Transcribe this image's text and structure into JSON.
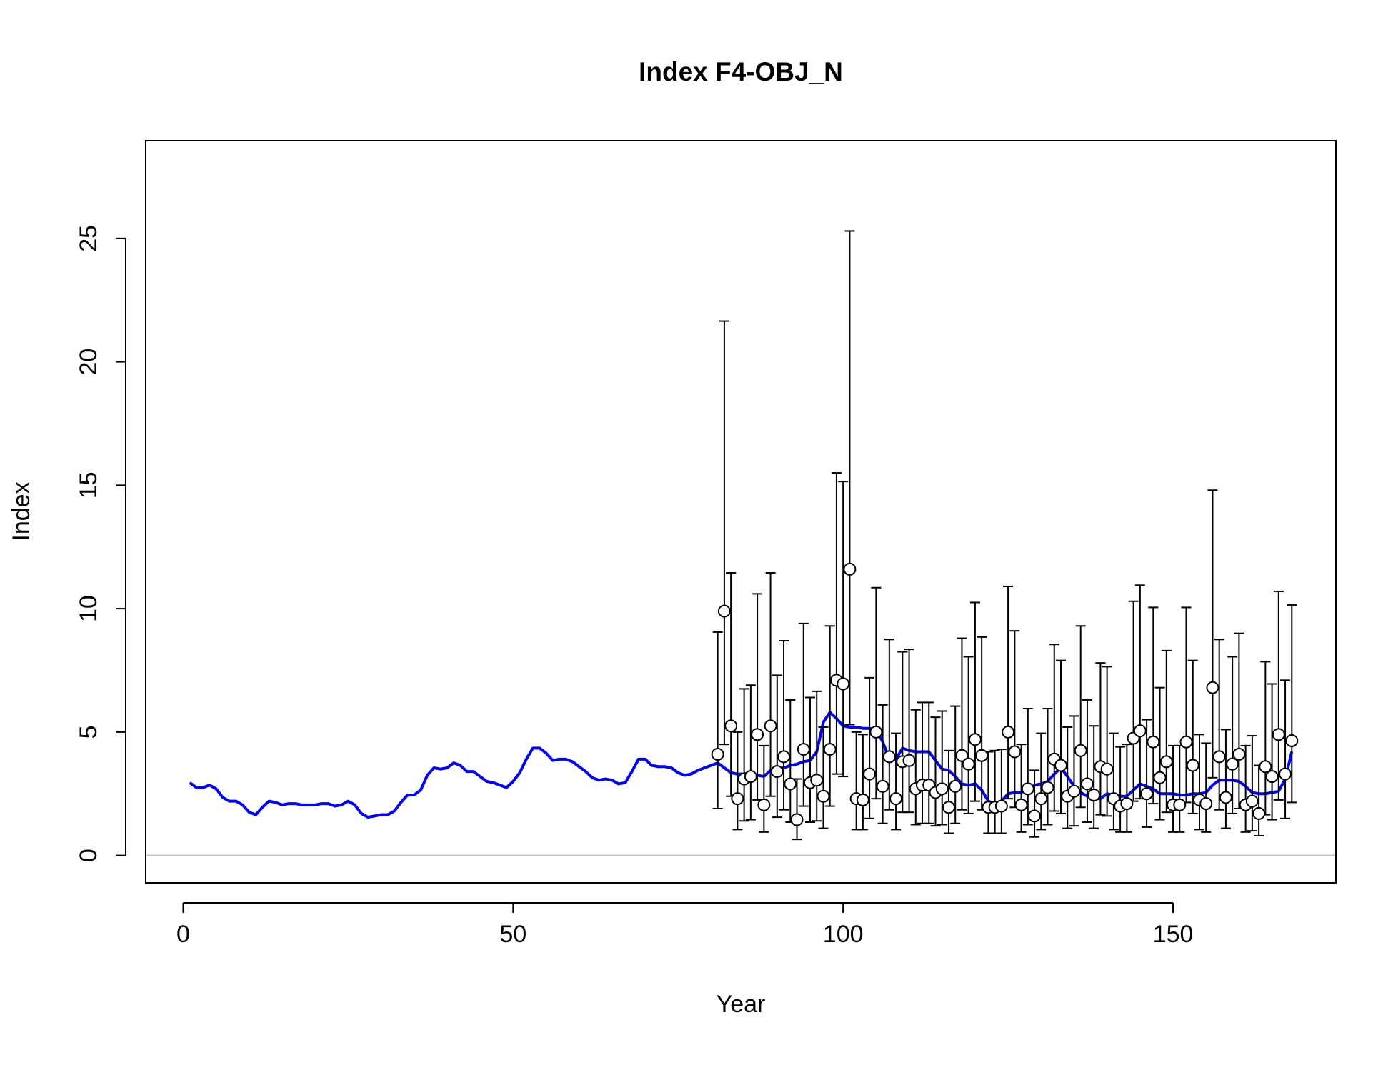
{
  "chart_data": {
    "type": "line",
    "title": "Index F4-OBJ_N",
    "x_label": "Year",
    "y_label": "Index",
    "xlim": [
      -5.68,
      174.68
    ],
    "ylim": [
      -1.11,
      28.96
    ],
    "xticks": [
      0,
      50,
      100,
      150
    ],
    "yticks": [
      0,
      5,
      10,
      15,
      20,
      25
    ],
    "hline": {
      "y": 0,
      "color": "#bebebe"
    },
    "series": [
      {
        "type": "line",
        "color": "#0000ff",
        "x": [
          1,
          2,
          3,
          4,
          5,
          6,
          7,
          8,
          9,
          10,
          11,
          12,
          13,
          14,
          15,
          16,
          17,
          18,
          19,
          20,
          21,
          22,
          23,
          24,
          25,
          26,
          27,
          28,
          29,
          30,
          31,
          32,
          33,
          34,
          35,
          36,
          37,
          38,
          39,
          40,
          41,
          42,
          43,
          44,
          45,
          46,
          47,
          48,
          49,
          50,
          51,
          52,
          53,
          54,
          55,
          56,
          57,
          58,
          59,
          60,
          61,
          62,
          63,
          64,
          65,
          66,
          67,
          68,
          69,
          70,
          71,
          72,
          73,
          74,
          75,
          76,
          77,
          78,
          79,
          80,
          81,
          82,
          83,
          84,
          85,
          86,
          87,
          88,
          89,
          90,
          91,
          92,
          93,
          94,
          95,
          96,
          97,
          98,
          99,
          100,
          101,
          102,
          103,
          104,
          105,
          106,
          107,
          108,
          109,
          110,
          111,
          112,
          113,
          114,
          115,
          116,
          117,
          118,
          119,
          120,
          121,
          122,
          123,
          124,
          125,
          126,
          127,
          128,
          129,
          130,
          131,
          132,
          133,
          134,
          135,
          136,
          137,
          138,
          139,
          140,
          141,
          142,
          143,
          144,
          145,
          146,
          147,
          148,
          149,
          150,
          151,
          152,
          153,
          154,
          155,
          156,
          157,
          158,
          159,
          160,
          161,
          162,
          163,
          164,
          165,
          166,
          167,
          168
        ],
        "values": [
          2.95,
          2.75,
          2.75,
          2.85,
          2.7,
          2.35,
          2.2,
          2.2,
          2.05,
          1.75,
          1.65,
          1.95,
          2.2,
          2.15,
          2.05,
          2.1,
          2.1,
          2.05,
          2.05,
          2.05,
          2.1,
          2.1,
          2.0,
          2.05,
          2.2,
          2.05,
          1.7,
          1.55,
          1.6,
          1.65,
          1.65,
          1.8,
          2.15,
          2.45,
          2.45,
          2.65,
          3.25,
          3.55,
          3.5,
          3.55,
          3.75,
          3.65,
          3.4,
          3.4,
          3.2,
          3.0,
          2.95,
          2.85,
          2.75,
          3.0,
          3.35,
          3.9,
          4.35,
          4.35,
          4.15,
          3.85,
          3.9,
          3.9,
          3.8,
          3.6,
          3.4,
          3.15,
          3.05,
          3.1,
          3.05,
          2.9,
          2.95,
          3.4,
          3.9,
          3.9,
          3.65,
          3.6,
          3.6,
          3.55,
          3.35,
          3.25,
          3.3,
          3.45,
          3.55,
          3.65,
          3.75,
          3.55,
          3.35,
          3.3,
          3.3,
          3.35,
          3.25,
          3.2,
          3.45,
          3.5,
          3.55,
          3.65,
          3.7,
          3.8,
          3.85,
          4.2,
          5.4,
          5.8,
          5.55,
          5.25,
          5.2,
          5.2,
          5.15,
          5.15,
          5.1,
          4.6,
          3.9,
          3.9,
          4.35,
          4.25,
          4.2,
          4.2,
          4.2,
          3.85,
          3.5,
          3.45,
          3.2,
          2.9,
          2.85,
          2.9,
          2.65,
          2.2,
          2.1,
          2.2,
          2.5,
          2.55,
          2.55,
          2.7,
          2.85,
          2.9,
          3.0,
          3.3,
          3.55,
          3.2,
          2.8,
          2.55,
          2.4,
          2.3,
          2.3,
          2.5,
          2.45,
          2.4,
          2.4,
          2.65,
          2.9,
          2.8,
          2.7,
          2.5,
          2.5,
          2.5,
          2.45,
          2.45,
          2.5,
          2.5,
          2.55,
          2.85,
          3.05,
          3.05,
          3.05,
          3.0,
          2.8,
          2.55,
          2.5,
          2.5,
          2.55,
          2.6,
          3.1,
          4.2
        ]
      },
      {
        "type": "errorbar",
        "color": "#000000",
        "marker_fill": "#ffffff",
        "x": [
          81,
          82,
          83,
          84,
          85,
          86,
          87,
          88,
          89,
          90,
          91,
          92,
          93,
          94,
          95,
          96,
          97,
          98,
          99,
          100,
          101,
          102,
          103,
          104,
          105,
          106,
          107,
          108,
          109,
          110,
          111,
          112,
          113,
          114,
          115,
          116,
          117,
          118,
          119,
          120,
          121,
          122,
          123,
          124,
          125,
          126,
          127,
          128,
          129,
          130,
          131,
          132,
          133,
          134,
          135,
          136,
          137,
          138,
          139,
          140,
          141,
          142,
          143,
          144,
          145,
          146,
          147,
          148,
          149,
          150,
          151,
          152,
          153,
          154,
          155,
          156,
          157,
          158,
          159,
          160,
          161,
          162,
          163,
          164,
          165,
          166,
          167,
          168
        ],
        "values": [
          4.1,
          9.9,
          5.25,
          2.3,
          3.1,
          3.2,
          4.9,
          2.05,
          5.25,
          3.4,
          4.0,
          2.9,
          1.45,
          4.3,
          2.95,
          3.05,
          2.4,
          4.3,
          7.1,
          6.95,
          11.6,
          2.3,
          2.25,
          3.3,
          5.0,
          2.8,
          4.0,
          2.3,
          3.8,
          3.85,
          2.7,
          2.85,
          2.85,
          2.55,
          2.7,
          1.95,
          2.8,
          4.05,
          3.7,
          4.7,
          4.05,
          1.95,
          1.95,
          2.0,
          5.0,
          4.2,
          2.05,
          2.7,
          1.6,
          2.3,
          2.75,
          3.9,
          3.65,
          2.4,
          2.6,
          4.25,
          2.9,
          2.45,
          3.6,
          3.5,
          2.3,
          2.0,
          2.1,
          4.75,
          5.05,
          2.5,
          4.6,
          3.15,
          3.8,
          2.05,
          2.05,
          4.6,
          3.65,
          2.25,
          2.1,
          6.8,
          4.0,
          2.35,
          3.7,
          4.1,
          2.05,
          2.2,
          1.7,
          3.6,
          3.2,
          4.9,
          3.3,
          4.65
        ],
        "lower": [
          1.9,
          4.5,
          2.4,
          1.05,
          1.4,
          1.45,
          2.25,
          0.95,
          2.4,
          1.55,
          1.85,
          1.35,
          0.65,
          2.0,
          1.35,
          1.4,
          1.1,
          2.0,
          3.3,
          3.2,
          5.3,
          1.05,
          1.05,
          1.5,
          2.3,
          1.3,
          1.85,
          1.05,
          1.75,
          1.75,
          1.25,
          1.3,
          1.3,
          1.2,
          1.25,
          0.9,
          1.3,
          1.85,
          1.7,
          2.2,
          1.85,
          0.9,
          0.9,
          0.9,
          2.3,
          1.95,
          0.95,
          1.25,
          0.75,
          1.05,
          1.25,
          1.8,
          1.7,
          1.1,
          1.2,
          1.95,
          1.35,
          1.1,
          1.65,
          1.6,
          1.05,
          0.95,
          0.95,
          2.2,
          2.3,
          1.15,
          2.1,
          1.45,
          1.75,
          0.95,
          0.95,
          2.15,
          1.7,
          1.05,
          0.95,
          3.15,
          1.85,
          1.1,
          1.7,
          1.9,
          0.95,
          1.0,
          0.8,
          1.65,
          1.45,
          2.25,
          1.5,
          2.15
        ],
        "upper": [
          9.05,
          21.65,
          11.45,
          5.0,
          6.75,
          6.9,
          10.6,
          4.45,
          11.45,
          7.3,
          8.7,
          6.3,
          3.1,
          9.4,
          6.4,
          6.65,
          5.2,
          9.3,
          15.5,
          15.15,
          25.3,
          5.0,
          4.9,
          7.2,
          10.85,
          6.1,
          8.75,
          4.95,
          8.25,
          8.35,
          5.9,
          6.2,
          6.2,
          5.6,
          5.85,
          4.25,
          6.05,
          8.8,
          8.05,
          10.25,
          8.85,
          4.2,
          4.25,
          4.3,
          10.9,
          9.1,
          4.5,
          5.95,
          3.45,
          4.95,
          5.95,
          8.55,
          7.9,
          5.2,
          5.65,
          9.3,
          6.3,
          5.25,
          7.8,
          7.65,
          4.95,
          4.4,
          4.5,
          10.3,
          10.95,
          5.5,
          10.05,
          6.8,
          8.3,
          4.45,
          4.45,
          10.05,
          7.9,
          4.9,
          4.55,
          14.8,
          8.75,
          5.1,
          8.05,
          9.0,
          4.45,
          4.85,
          3.65,
          7.85,
          6.95,
          10.7,
          7.1,
          10.15
        ]
      }
    ]
  }
}
